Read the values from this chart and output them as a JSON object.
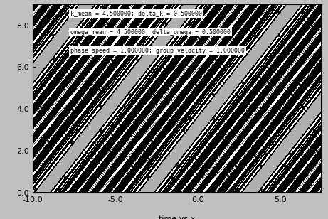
{
  "k_mean": 4.5,
  "delta_k": 0.5,
  "omega_mean": 4.5,
  "delta_omega": 0.5,
  "x_min": -10.0,
  "x_max": 7.5,
  "t_min": 0.0,
  "t_max": 9.0,
  "xlabel": "time vs x",
  "annotation1": "k_mean = 4.500000; delta_k = 0.500000",
  "annotation2": "omega_mean = 4.500000; delta_omega = 0.500000",
  "annotation3": "phase speed = 1.000000; group velocity = 1.000000",
  "xticks": [
    -10.0,
    -5.0,
    0.0,
    5.0
  ],
  "yticks": [
    0.0,
    2.0,
    4.0,
    6.0,
    8.0
  ],
  "bg_color": "#c0c0c0",
  "plot_bg": "#b0b0b0",
  "fig_width": 4.61,
  "fig_height": 3.08,
  "dpi": 100
}
